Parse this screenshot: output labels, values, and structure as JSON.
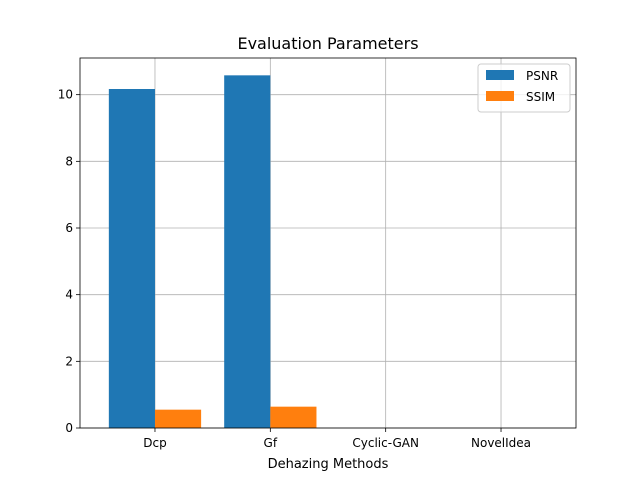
{
  "chart_data": {
    "type": "bar",
    "title": "Evaluation Parameters",
    "xlabel": "Dehazing Methods",
    "ylabel": "",
    "categories": [
      "Dcp",
      "Gf",
      "Cyclic-GAN",
      "NovelIdea"
    ],
    "series": [
      {
        "name": "PSNR",
        "values": [
          10.17,
          10.58,
          0,
          0
        ],
        "color": "#1f77b4"
      },
      {
        "name": "SSIM",
        "values": [
          0.55,
          0.64,
          0,
          0
        ],
        "color": "#ff7f0e"
      }
    ],
    "ylim": [
      0,
      11.1
    ],
    "yticks": [
      0,
      2,
      4,
      6,
      8,
      10
    ],
    "grid": true,
    "legend_position": "upper-right"
  }
}
